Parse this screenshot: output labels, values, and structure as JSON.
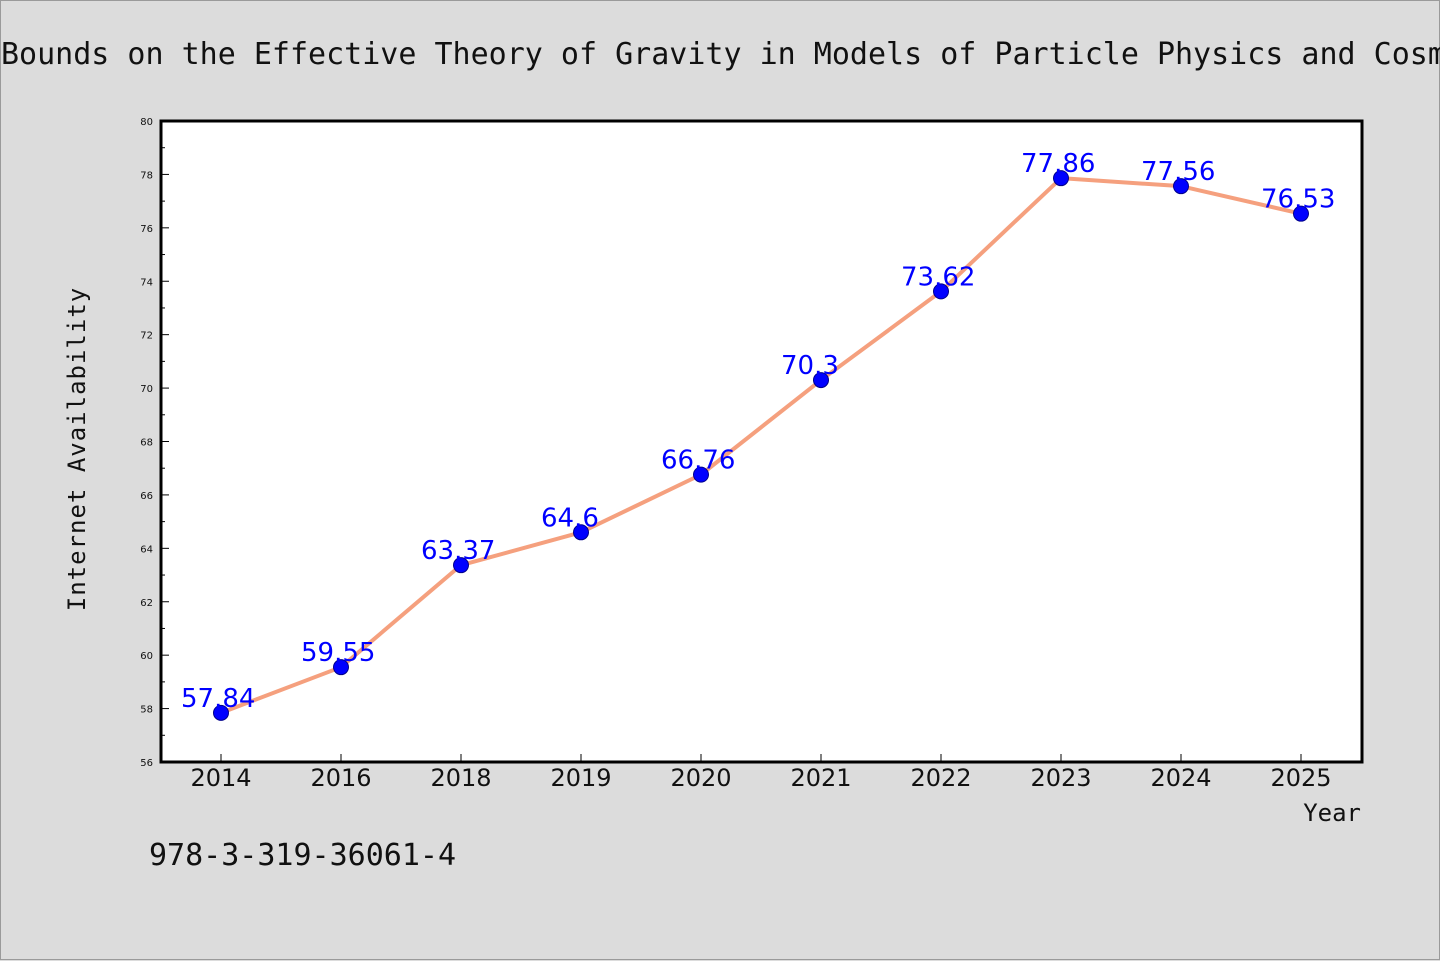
{
  "chart_data": {
    "type": "line",
    "title": "Bounds on the Effective Theory of Gravity in Models of Particle Physics and Cosmology",
    "xlabel": "Year",
    "ylabel": "Internet Availability",
    "categories": [
      "2014",
      "2016",
      "2018",
      "2019",
      "2020",
      "2021",
      "2022",
      "2023",
      "2024",
      "2025"
    ],
    "series": [
      {
        "values": [
          57.84,
          59.55,
          63.37,
          64.6,
          66.76,
          70.3,
          73.62,
          77.86,
          77.56,
          76.53
        ],
        "labels": [
          "57.84",
          "59.55",
          "63.37",
          "64.6",
          "66.76",
          "70.3",
          "73.62",
          "77.86",
          "77.56",
          "76.53"
        ],
        "line_color": "#f5a07e",
        "marker_color": "#0000ff"
      }
    ],
    "ylim": [
      56,
      80
    ],
    "yticks": [
      "56",
      "58",
      "60",
      "62",
      "64",
      "66",
      "68",
      "70",
      "72",
      "74",
      "76",
      "78",
      "80"
    ],
    "grid": false,
    "legend": "none"
  },
  "footer": {
    "isbn": "978-3-319-36061-4"
  },
  "colors": {
    "background": "#dcdcdc",
    "plot_area": "#ffffff",
    "data_label": "#0000ff"
  }
}
